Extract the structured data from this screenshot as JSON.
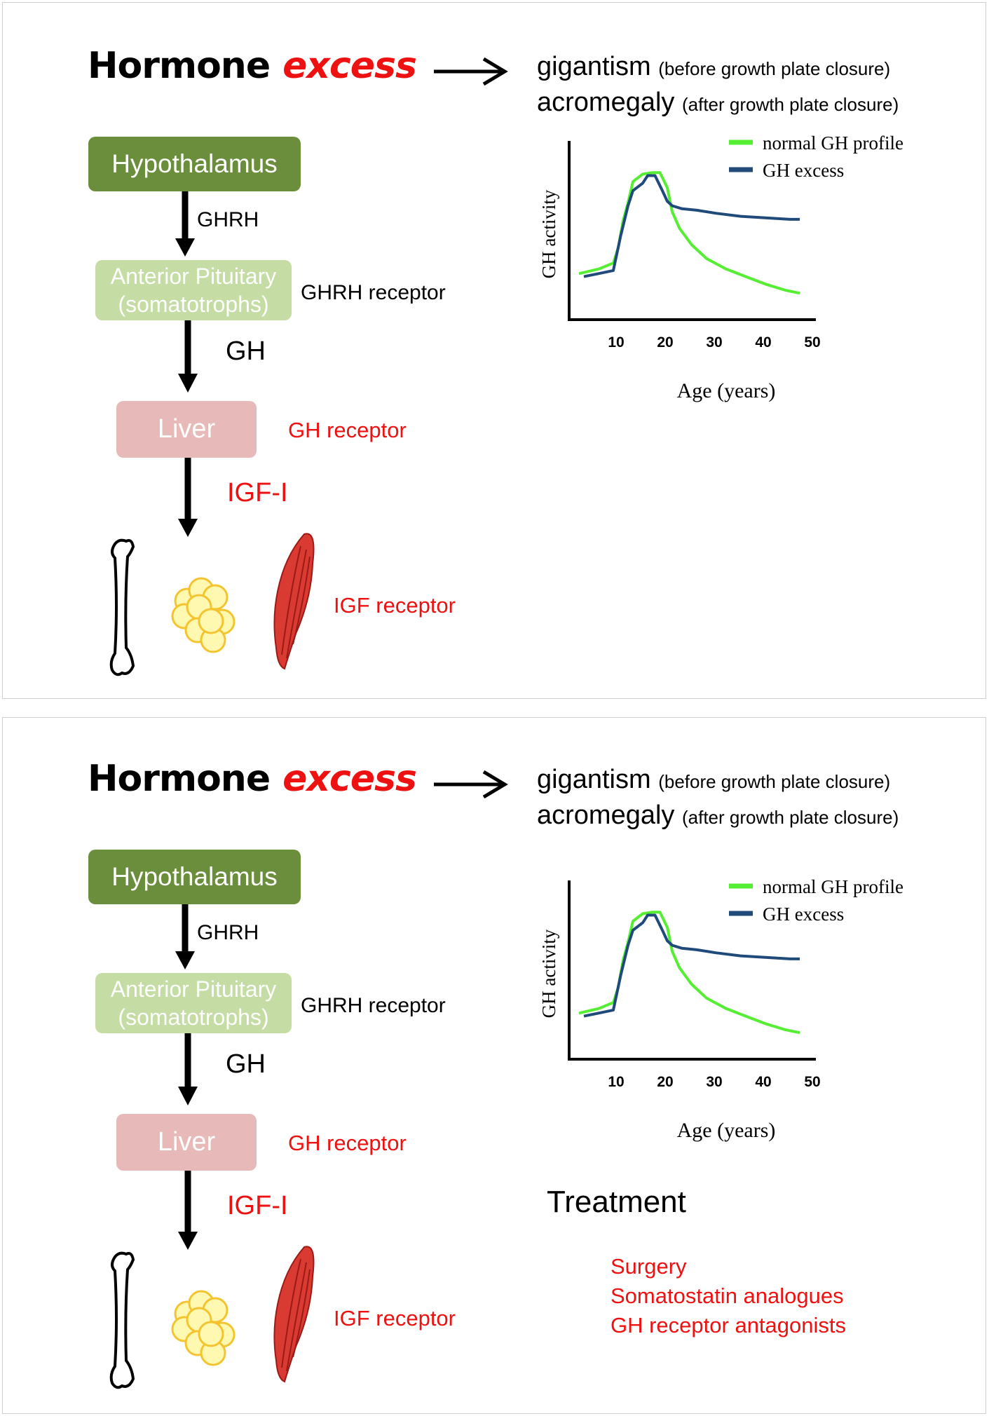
{
  "panels": [
    {
      "title": {
        "word1": "Hormone",
        "word2": "excess"
      },
      "conditions": [
        {
          "name": "gigantism",
          "note": "(before growth plate closure)"
        },
        {
          "name": "acromegaly",
          "note": "(after growth plate closure)"
        }
      ],
      "flow": {
        "hypothalamus": "Hypothalamus",
        "ghrh": "GHRH",
        "pituitary_line1": "Anterior Pituitary",
        "pituitary_line2": "(somatotrophs)",
        "ghrh_receptor": "GHRH receptor",
        "gh": "GH",
        "liver": "Liver",
        "gh_receptor": "GH receptor",
        "igf": "IGF-I",
        "igf_receptor": "IGF receptor"
      }
    },
    {
      "title": {
        "word1": "Hormone",
        "word2": "excess"
      },
      "conditions": [
        {
          "name": "gigantism",
          "note": "(before growth plate closure)"
        },
        {
          "name": "acromegaly",
          "note": "(after growth plate closure)"
        }
      ],
      "flow": {
        "hypothalamus": "Hypothalamus",
        "ghrh": "GHRH",
        "pituitary_line1": "Anterior Pituitary",
        "pituitary_line2": "(somatotrophs)",
        "ghrh_receptor": "GHRH receptor",
        "gh": "GH",
        "liver": "Liver",
        "gh_receptor": "GH receptor",
        "igf": "IGF-I",
        "igf_receptor": "IGF receptor"
      },
      "treatment": {
        "heading": "Treatment",
        "items": [
          "Surgery",
          "Somatostatin analogues",
          "GH receptor antagonists"
        ]
      }
    }
  ],
  "chart_data": [
    {
      "type": "line",
      "xlabel": "Age (years)",
      "ylabel": "GH activity",
      "xticks": [
        10,
        20,
        30,
        40,
        50
      ],
      "xlim": [
        0,
        50
      ],
      "ylim": [
        0,
        100
      ],
      "legend_position": "top-right",
      "series": [
        {
          "name": "normal GH profile",
          "color": "#55ee33",
          "x": [
            2,
            6,
            9,
            10,
            11,
            12,
            13,
            15,
            17,
            18.5,
            20,
            21,
            22.5,
            25,
            28,
            32,
            36,
            40,
            44,
            47
          ],
          "y": [
            25,
            28,
            32,
            42,
            60,
            72,
            86,
            91,
            92,
            92,
            82,
            66,
            55,
            44,
            35,
            28,
            23,
            18,
            14,
            12
          ]
        },
        {
          "name": "GH excess",
          "color": "#1f4a7a",
          "x": [
            3,
            6,
            9,
            10.5,
            12,
            13,
            15,
            16,
            17.5,
            19,
            20,
            21,
            23,
            26,
            30,
            35,
            40,
            45,
            47
          ],
          "y": [
            23,
            25,
            27,
            50,
            70,
            80,
            85,
            90,
            90,
            80,
            73,
            70,
            68,
            67,
            65,
            63,
            62,
            61,
            61
          ]
        }
      ]
    },
    {
      "type": "line",
      "xlabel": "Age (years)",
      "ylabel": "GH activity",
      "xticks": [
        10,
        20,
        30,
        40,
        50
      ],
      "xlim": [
        0,
        50
      ],
      "ylim": [
        0,
        100
      ],
      "legend_position": "top-right",
      "series": [
        {
          "name": "normal GH profile",
          "color": "#55ee33",
          "x": [
            2,
            6,
            9,
            10,
            11,
            12,
            13,
            15,
            17,
            18.5,
            20,
            21,
            22.5,
            25,
            28,
            32,
            36,
            40,
            44,
            47
          ],
          "y": [
            25,
            28,
            32,
            42,
            60,
            72,
            86,
            91,
            92,
            92,
            82,
            66,
            55,
            44,
            35,
            28,
            23,
            18,
            14,
            12
          ]
        },
        {
          "name": "GH excess",
          "color": "#1f4a7a",
          "x": [
            3,
            6,
            9,
            10.5,
            12,
            13,
            15,
            16,
            17.5,
            19,
            20,
            21,
            23,
            26,
            30,
            35,
            40,
            45,
            47
          ],
          "y": [
            23,
            25,
            27,
            50,
            70,
            80,
            85,
            90,
            90,
            80,
            73,
            70,
            68,
            67,
            65,
            63,
            62,
            61,
            61
          ]
        }
      ]
    }
  ]
}
